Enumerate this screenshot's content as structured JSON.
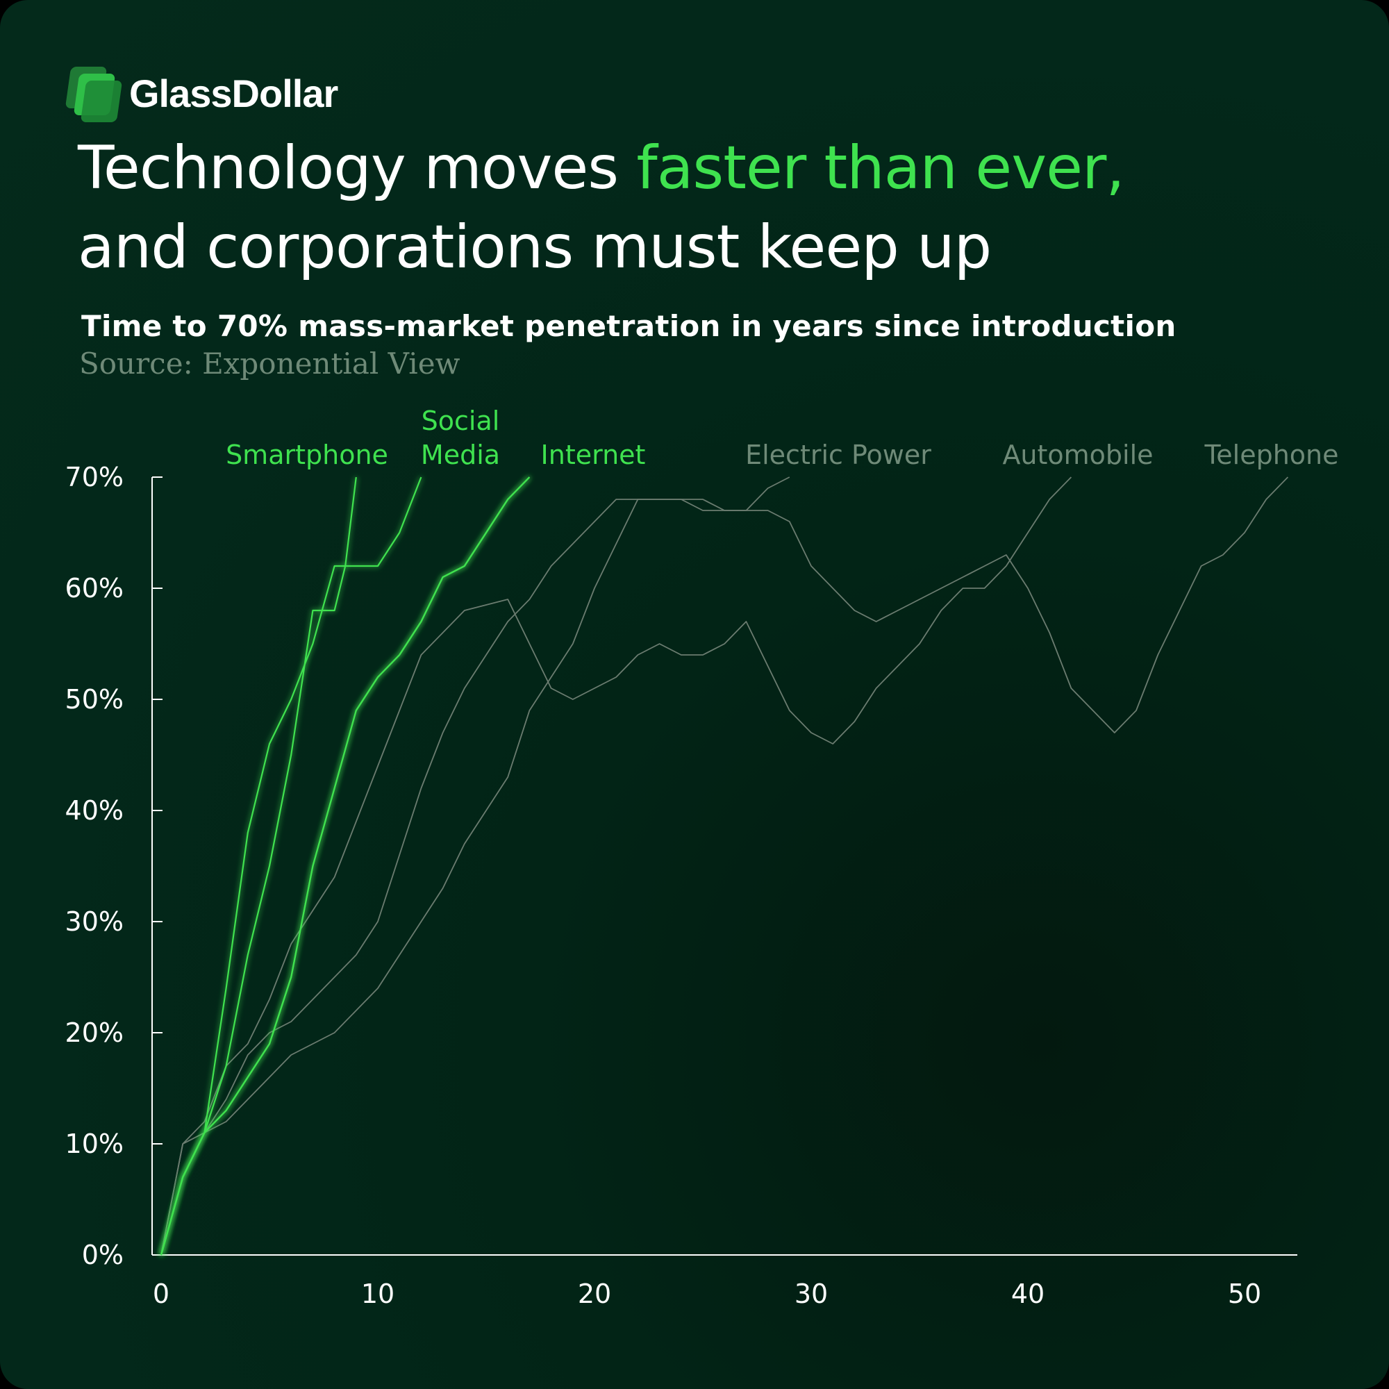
{
  "brand": {
    "name": "GlassDollar"
  },
  "headline": {
    "part1": "Technology moves ",
    "highlight": "faster than ever,",
    "part2": "and corporations must keep up"
  },
  "subtitle": "Time to 70% mass-market penetration in years since introduction",
  "source": "Source: Exponential View",
  "colors": {
    "accent": "#3fe24f",
    "muted_line": "#6b7c70",
    "muted_label": "#6f8a78",
    "background": "#03281a"
  },
  "chart_data": {
    "type": "line",
    "xlim": [
      0,
      52
    ],
    "ylim": [
      0,
      70
    ],
    "x_ticks": [
      0,
      10,
      20,
      30,
      40,
      50
    ],
    "x_tick_labels": [
      "0",
      "10",
      "20",
      "30",
      "40",
      "50"
    ],
    "y_ticks": [
      0,
      10,
      20,
      30,
      40,
      50,
      60,
      70
    ],
    "y_tick_labels": [
      "0%",
      "10%",
      "20%",
      "30%",
      "40%",
      "50%",
      "60%",
      "70%"
    ],
    "grid": false,
    "series": [
      {
        "name": "Smartphone",
        "label_lines": [
          "Smartphone"
        ],
        "highlight": true,
        "x": [
          0,
          1,
          2,
          3,
          4,
          5,
          6,
          7,
          7.5,
          8,
          8.5,
          9
        ],
        "y": [
          0,
          7,
          11,
          17,
          27,
          35,
          45,
          58,
          58,
          58,
          62,
          70
        ]
      },
      {
        "name": "Smartphone",
        "label_lines": [],
        "highlight": true,
        "x": [
          0,
          1,
          2,
          3,
          4,
          5,
          6,
          7,
          8,
          9,
          10,
          11,
          12
        ],
        "y": [
          0,
          7,
          11,
          24,
          38,
          46,
          50,
          55,
          62,
          62,
          62,
          65,
          70
        ]
      },
      {
        "name": "Social Media",
        "label_lines": [
          "Social",
          "Media"
        ],
        "highlight": true,
        "x": [
          0,
          1,
          2,
          3,
          4,
          5,
          6,
          7,
          8,
          9,
          10,
          11,
          12,
          13,
          14,
          15,
          16,
          17
        ],
        "y": [
          0,
          7,
          11,
          13,
          16,
          19,
          25,
          35,
          42,
          49,
          52,
          54,
          57,
          61,
          62,
          65,
          68,
          70
        ]
      },
      {
        "name": "Internet",
        "label_lines": [
          "Internet"
        ],
        "highlight": true,
        "x": [
          0,
          1,
          2,
          3,
          4,
          5,
          6,
          7,
          8,
          9,
          10,
          11,
          12,
          13,
          14,
          15,
          16,
          17
        ],
        "y": [
          0,
          7,
          11,
          13,
          16,
          19,
          25,
          35,
          42,
          49,
          52,
          54,
          57,
          61,
          62,
          65,
          68,
          70
        ]
      },
      {
        "name": "Electric Power",
        "label_lines": [
          "Electric Power"
        ],
        "highlight": false,
        "x": [
          0,
          1,
          2,
          3,
          4,
          5,
          6,
          7,
          8,
          9,
          10,
          11,
          12,
          13,
          14,
          15,
          16,
          17,
          18,
          19,
          20,
          21,
          22,
          23,
          24,
          25,
          26,
          27,
          28,
          29
        ],
        "y": [
          0,
          10,
          11,
          14,
          18,
          20,
          21,
          23,
          25,
          27,
          30,
          36,
          42,
          47,
          51,
          54,
          57,
          59,
          62,
          64,
          66,
          68,
          68,
          68,
          68,
          67,
          67,
          67,
          69,
          70
        ]
      },
      {
        "name": "Automobile",
        "label_lines": [
          "Automobile"
        ],
        "highlight": false,
        "x": [
          0,
          1,
          2,
          3,
          4,
          5,
          6,
          7,
          8,
          9,
          10,
          11,
          12,
          13,
          14,
          15,
          16,
          17,
          18,
          19,
          20,
          21,
          22,
          23,
          24,
          25,
          26,
          27,
          28,
          29,
          30,
          31,
          32,
          33,
          34,
          35,
          36,
          37,
          38,
          39,
          40,
          41,
          42
        ],
        "y": [
          0,
          10,
          12,
          17,
          19,
          23,
          28,
          31,
          34,
          39,
          44,
          49,
          54,
          56,
          58,
          58.5,
          59,
          55,
          51,
          50,
          51,
          52,
          54,
          55,
          54,
          54,
          55,
          57,
          53,
          49,
          47,
          46,
          48,
          51,
          53,
          55,
          58,
          60,
          60,
          62,
          65,
          68,
          70
        ]
      },
      {
        "name": "Telephone",
        "label_lines": [
          "Telephone"
        ],
        "highlight": false,
        "x": [
          0,
          1,
          2,
          3,
          4,
          5,
          6,
          7,
          8,
          9,
          10,
          11,
          12,
          13,
          14,
          15,
          16,
          17,
          18,
          19,
          20,
          21,
          22,
          23,
          24,
          25,
          26,
          27,
          28,
          29,
          30,
          31,
          32,
          33,
          34,
          35,
          36,
          37,
          38,
          39,
          40,
          41,
          42,
          43,
          44,
          45,
          46,
          47,
          48,
          49,
          50,
          51,
          52
        ],
        "y": [
          0,
          10,
          11,
          12,
          14,
          16,
          18,
          19,
          20,
          22,
          24,
          27,
          30,
          33,
          37,
          40,
          43,
          49,
          52,
          55,
          60,
          64,
          68,
          68,
          68,
          68,
          67,
          67,
          67,
          66,
          62,
          60,
          58,
          57,
          58,
          59,
          60,
          61,
          62,
          63,
          60,
          56,
          51,
          49,
          47,
          49,
          54,
          58,
          62,
          63,
          65,
          68,
          70
        ]
      }
    ]
  }
}
